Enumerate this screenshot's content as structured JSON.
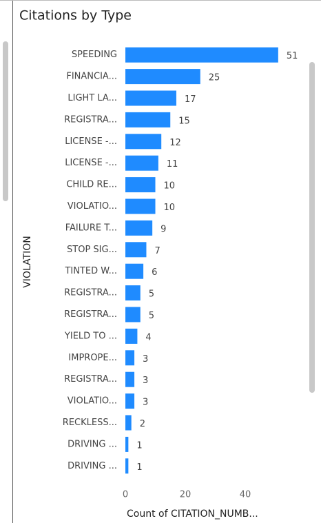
{
  "chart_data": {
    "type": "bar",
    "orientation": "horizontal",
    "title": "Citations by Type",
    "x_label": "Count of CITATION_NUMB...",
    "y_label": "VIOLATION",
    "categories": [
      "SPEEDING",
      "FINANCIA...",
      "LIGHT LA...",
      "REGISTRA...",
      "LICENSE -...",
      "LICENSE -...",
      "CHILD RE...",
      "VIOLATIO...",
      "FAILURE T...",
      "STOP SIG...",
      "TINTED W...",
      "REGISTRA...",
      "REGISTRA...",
      "YIELD TO ...",
      "IMPROPE...",
      "REGISTRA...",
      "VIOLATIO...",
      "RECKLESS...",
      "DRIVING ...",
      "DRIVING ..."
    ],
    "values": [
      51,
      25,
      17,
      15,
      12,
      11,
      10,
      10,
      9,
      7,
      6,
      5,
      5,
      4,
      3,
      3,
      3,
      2,
      1,
      1
    ],
    "color": "#1f8bff",
    "xlim": [
      0,
      60
    ],
    "xticks": [
      0,
      20,
      40
    ],
    "grid": false
  }
}
